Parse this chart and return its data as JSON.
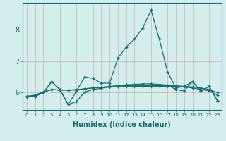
{
  "xlabel": "Humidex (Indice chaleur)",
  "xlim": [
    -0.5,
    23.5
  ],
  "ylim": [
    5.45,
    8.85
  ],
  "yticks": [
    6,
    7,
    8
  ],
  "xticks": [
    0,
    1,
    2,
    3,
    4,
    5,
    6,
    7,
    8,
    9,
    10,
    11,
    12,
    13,
    14,
    15,
    16,
    17,
    18,
    19,
    20,
    21,
    22,
    23
  ],
  "bg_color": "#d4eeee",
  "grid_color": "#c8b4b4",
  "line_color": "#1a6e6e",
  "series": [
    [
      5.88,
      5.88,
      6.0,
      6.35,
      6.1,
      5.62,
      6.05,
      6.5,
      6.45,
      6.3,
      6.3,
      7.1,
      7.45,
      7.7,
      8.05,
      8.62,
      7.7,
      6.65,
      6.15,
      6.2,
      6.35,
      6.05,
      6.2,
      5.75
    ],
    [
      5.88,
      5.92,
      6.02,
      6.1,
      6.08,
      6.08,
      6.08,
      6.12,
      6.15,
      6.17,
      6.18,
      6.19,
      6.2,
      6.2,
      6.2,
      6.2,
      6.2,
      6.2,
      6.2,
      6.18,
      6.15,
      6.1,
      6.06,
      5.92
    ],
    [
      5.88,
      5.92,
      6.02,
      6.1,
      6.08,
      6.08,
      6.1,
      6.12,
      6.15,
      6.17,
      6.2,
      6.22,
      6.22,
      6.22,
      6.22,
      6.22,
      6.22,
      6.22,
      6.22,
      6.2,
      6.18,
      6.15,
      6.1,
      6.0
    ],
    [
      5.88,
      5.88,
      6.0,
      6.35,
      6.1,
      5.62,
      5.72,
      6.02,
      6.1,
      6.14,
      6.18,
      6.22,
      6.25,
      6.26,
      6.28,
      6.28,
      6.26,
      6.24,
      6.1,
      6.05,
      6.35,
      6.05,
      6.2,
      5.75
    ]
  ]
}
